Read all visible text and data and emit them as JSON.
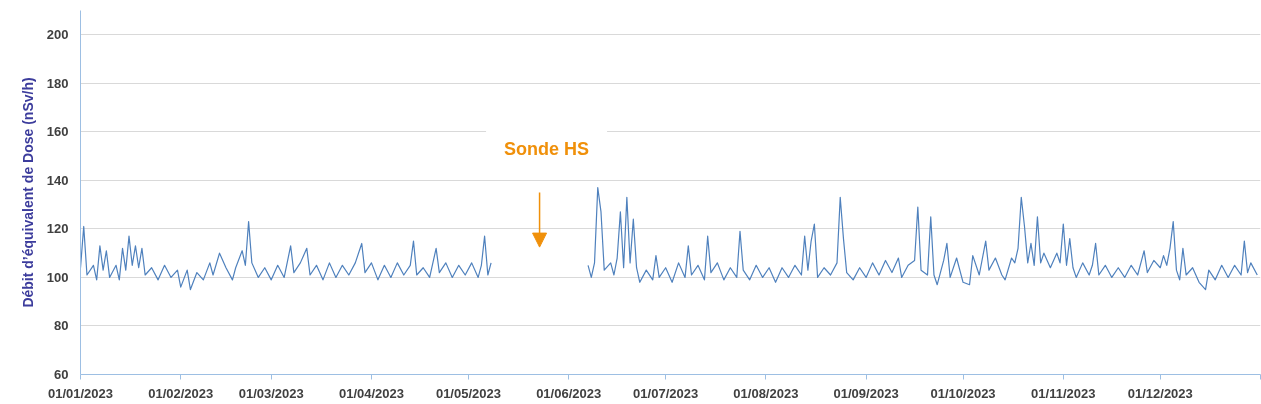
{
  "chart_data": {
    "type": "line",
    "ylabel": "Débit d’équivalent de Dose (nSv/h)",
    "color": "#4f81bd",
    "grid": "y",
    "ylim": [
      60,
      210
    ],
    "yticks": [
      60,
      80,
      100,
      120,
      140,
      160,
      180,
      200
    ],
    "xlim": [
      "2023-01-01",
      "2024-01-01"
    ],
    "xticks": [
      {
        "value": "2023-01-01",
        "label": "01/01/2023"
      },
      {
        "value": "2023-02-01",
        "label": "01/02/2023"
      },
      {
        "value": "2023-03-01",
        "label": "01/03/2023"
      },
      {
        "value": "2023-04-01",
        "label": "01/04/2023"
      },
      {
        "value": "2023-05-01",
        "label": "01/05/2023"
      },
      {
        "value": "2023-06-01",
        "label": "01/06/2023"
      },
      {
        "value": "2023-07-01",
        "label": "01/07/2023"
      },
      {
        "value": "2023-08-01",
        "label": "01/08/2023"
      },
      {
        "value": "2023-09-01",
        "label": "01/09/2023"
      },
      {
        "value": "2023-10-01",
        "label": "01/10/2023"
      },
      {
        "value": "2023-11-01",
        "label": "01/11/2023"
      },
      {
        "value": "2023-12-01",
        "label": "01/12/2023"
      },
      {
        "value": "2024-01-01",
        "label": null
      }
    ],
    "annotations": [
      "Sonde HS"
    ],
    "x": [
      "2023-01-01",
      "2023-01-02",
      "2023-01-03",
      "2023-01-05",
      "2023-01-06",
      "2023-01-07",
      "2023-01-08",
      "2023-01-09",
      "2023-01-10",
      "2023-01-12",
      "2023-01-13",
      "2023-01-14",
      "2023-01-15",
      "2023-01-16",
      "2023-01-17",
      "2023-01-18",
      "2023-01-19",
      "2023-01-20",
      "2023-01-21",
      "2023-01-23",
      "2023-01-25",
      "2023-01-27",
      "2023-01-29",
      "2023-01-31",
      "2023-02-01",
      "2023-02-03",
      "2023-02-04",
      "2023-02-06",
      "2023-02-08",
      "2023-02-10",
      "2023-02-11",
      "2023-02-13",
      "2023-02-15",
      "2023-02-17",
      "2023-02-18",
      "2023-02-20",
      "2023-02-21",
      "2023-02-22",
      "2023-02-23",
      "2023-02-25",
      "2023-02-27",
      "2023-03-01",
      "2023-03-03",
      "2023-03-05",
      "2023-03-07",
      "2023-03-08",
      "2023-03-10",
      "2023-03-12",
      "2023-03-13",
      "2023-03-15",
      "2023-03-17",
      "2023-03-19",
      "2023-03-21",
      "2023-03-23",
      "2023-03-25",
      "2023-03-27",
      "2023-03-29",
      "2023-03-30",
      "2023-04-01",
      "2023-04-03",
      "2023-04-05",
      "2023-04-07",
      "2023-04-09",
      "2023-04-11",
      "2023-04-13",
      "2023-04-14",
      "2023-04-15",
      "2023-04-17",
      "2023-04-19",
      "2023-04-21",
      "2023-04-22",
      "2023-04-24",
      "2023-04-26",
      "2023-04-28",
      "2023-04-30",
      "2023-05-02",
      "2023-05-04",
      "2023-05-05",
      "2023-05-06",
      "2023-05-07",
      "2023-05-08",
      "2023-05-23",
      "2023-06-07",
      "2023-06-08",
      "2023-06-09",
      "2023-06-10",
      "2023-06-11",
      "2023-06-12",
      "2023-06-14",
      "2023-06-15",
      "2023-06-16",
      "2023-06-17",
      "2023-06-18",
      "2023-06-19",
      "2023-06-20",
      "2023-06-21",
      "2023-06-22",
      "2023-06-23",
      "2023-06-25",
      "2023-06-27",
      "2023-06-28",
      "2023-06-29",
      "2023-07-01",
      "2023-07-03",
      "2023-07-05",
      "2023-07-07",
      "2023-07-08",
      "2023-07-09",
      "2023-07-11",
      "2023-07-13",
      "2023-07-14",
      "2023-07-15",
      "2023-07-17",
      "2023-07-19",
      "2023-07-21",
      "2023-07-23",
      "2023-07-24",
      "2023-07-25",
      "2023-07-27",
      "2023-07-29",
      "2023-07-31",
      "2023-08-02",
      "2023-08-04",
      "2023-08-06",
      "2023-08-08",
      "2023-08-10",
      "2023-08-12",
      "2023-08-13",
      "2023-08-14",
      "2023-08-15",
      "2023-08-16",
      "2023-08-17",
      "2023-08-19",
      "2023-08-21",
      "2023-08-23",
      "2023-08-24",
      "2023-08-25",
      "2023-08-26",
      "2023-08-28",
      "2023-08-30",
      "2023-09-01",
      "2023-09-03",
      "2023-09-05",
      "2023-09-07",
      "2023-09-09",
      "2023-09-11",
      "2023-09-12",
      "2023-09-14",
      "2023-09-16",
      "2023-09-17",
      "2023-09-18",
      "2023-09-20",
      "2023-09-21",
      "2023-09-22",
      "2023-09-23",
      "2023-09-25",
      "2023-09-26",
      "2023-09-27",
      "2023-09-29",
      "2023-10-01",
      "2023-10-03",
      "2023-10-04",
      "2023-10-06",
      "2023-10-08",
      "2023-10-09",
      "2023-10-11",
      "2023-10-13",
      "2023-10-14",
      "2023-10-16",
      "2023-10-17",
      "2023-10-18",
      "2023-10-19",
      "2023-10-20",
      "2023-10-21",
      "2023-10-22",
      "2023-10-23",
      "2023-10-24",
      "2023-10-25",
      "2023-10-26",
      "2023-10-28",
      "2023-10-30",
      "2023-10-31",
      "2023-11-01",
      "2023-11-02",
      "2023-11-03",
      "2023-11-04",
      "2023-11-05",
      "2023-11-07",
      "2023-11-09",
      "2023-11-10",
      "2023-11-11",
      "2023-11-12",
      "2023-11-14",
      "2023-11-16",
      "2023-11-18",
      "2023-11-20",
      "2023-11-22",
      "2023-11-24",
      "2023-11-25",
      "2023-11-26",
      "2023-11-27",
      "2023-11-29",
      "2023-12-01",
      "2023-12-02",
      "2023-12-03",
      "2023-12-04",
      "2023-12-05",
      "2023-12-06",
      "2023-12-07",
      "2023-12-08",
      "2023-12-09",
      "2023-12-11",
      "2023-12-13",
      "2023-12-15",
      "2023-12-16",
      "2023-12-18",
      "2023-12-20",
      "2023-12-22",
      "2023-12-24",
      "2023-12-26",
      "2023-12-27",
      "2023-12-28",
      "2023-12-29",
      "2023-12-31"
    ],
    "values": [
      104,
      121,
      101,
      105,
      99,
      113,
      103,
      111,
      100,
      105,
      99,
      112,
      103,
      117,
      105,
      113,
      104,
      112,
      101,
      104,
      99,
      105,
      100,
      103,
      96,
      103,
      95,
      102,
      99,
      106,
      101,
      110,
      104,
      99,
      104,
      111,
      105,
      123,
      106,
      100,
      104,
      99,
      105,
      100,
      113,
      102,
      106,
      112,
      101,
      105,
      99,
      106,
      100,
      105,
      101,
      106,
      114,
      102,
      106,
      99,
      105,
      100,
      106,
      101,
      105,
      115,
      101,
      104,
      100,
      112,
      102,
      106,
      100,
      105,
      101,
      106,
      100,
      105,
      117,
      101,
      106,
      null,
      105,
      100,
      106,
      137,
      127,
      103,
      106,
      101,
      108,
      127,
      104,
      133,
      106,
      124,
      104,
      98,
      103,
      99,
      109,
      100,
      104,
      98,
      106,
      100,
      113,
      101,
      105,
      99,
      117,
      102,
      106,
      99,
      104,
      100,
      119,
      103,
      99,
      105,
      100,
      104,
      98,
      104,
      100,
      105,
      101,
      117,
      103,
      115,
      122,
      100,
      104,
      101,
      106,
      133,
      116,
      102,
      99,
      104,
      100,
      106,
      101,
      107,
      102,
      108,
      100,
      105,
      107,
      129,
      103,
      101,
      125,
      101,
      97,
      107,
      114,
      100,
      108,
      98,
      97,
      109,
      101,
      115,
      103,
      108,
      101,
      99,
      108,
      106,
      112,
      133,
      121,
      106,
      114,
      105,
      125,
      106,
      110,
      104,
      110,
      106,
      122,
      105,
      116,
      104,
      100,
      106,
      101,
      105,
      114,
      101,
      105,
      100,
      104,
      100,
      105,
      101,
      106,
      111,
      102,
      107,
      104,
      109,
      105,
      112,
      123,
      103,
      99,
      112,
      101,
      104,
      98,
      95,
      103,
      99,
      105,
      100,
      105,
      101,
      115,
      102,
      106,
      101
    ]
  }
}
